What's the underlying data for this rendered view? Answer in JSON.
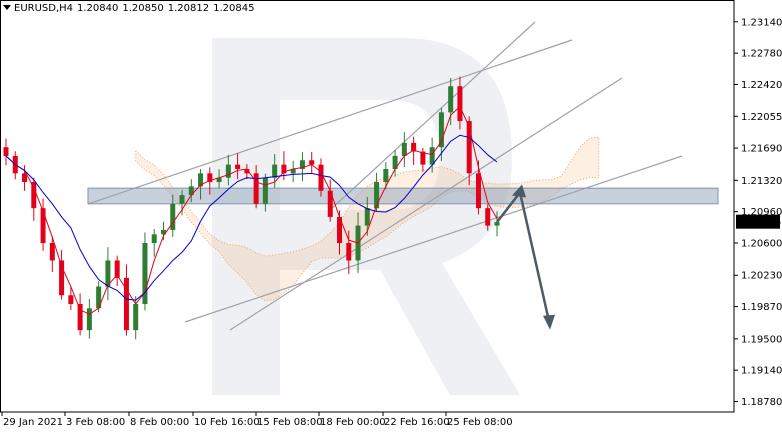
{
  "header": {
    "symbol": "EURUSD,H4",
    "open": "1.20840",
    "high": "1.20850",
    "low": "1.20812",
    "close": "1.20845"
  },
  "colors": {
    "bull_candle": "#2e7d32",
    "bear_candle": "#e3001b",
    "tenkan": "#e3001b",
    "kijun": "#0000cc",
    "cloud": "#f4a460",
    "trendline": "#a0a0a8",
    "zone": "#9aa9bd",
    "arrow": "#4b5b68",
    "current_price_bg": "#000000",
    "watermark": "#eef0f4"
  },
  "chart_data": {
    "type": "candlestick",
    "ylim": [
      1.1866,
      1.2339
    ],
    "price_ticks": [
      "1.23140",
      "1.22780",
      "1.22420",
      "1.22055",
      "1.21690",
      "1.21320",
      "1.20960",
      "1.20600",
      "1.20230",
      "1.19870",
      "1.19500",
      "1.19140",
      "1.18780"
    ],
    "current_price": "1.20845",
    "time_ticks": [
      "29 Jan 2021",
      "3 Feb 08:00",
      "8 Feb 00:00",
      "10 Feb 16:00",
      "15 Feb 08:00",
      "18 Feb 00:00",
      "22 Feb 16:00",
      "25 Feb 08:00"
    ],
    "candles_close_path": [
      1.216,
      1.214,
      1.213,
      1.21,
      1.206,
      1.204,
      1.2,
      1.199,
      1.196,
      1.1985,
      1.201,
      1.204,
      1.202,
      1.196,
      1.199,
      1.206,
      1.207,
      1.2075,
      1.2105,
      1.2115,
      1.2125,
      1.214,
      1.213,
      1.2135,
      1.215,
      1.2145,
      1.214,
      1.2105,
      1.2135,
      1.215,
      1.214,
      1.2145,
      1.2155,
      1.215,
      1.212,
      1.209,
      1.206,
      1.204,
      1.208,
      1.21,
      1.213,
      1.2145,
      1.216,
      1.2175,
      1.2165,
      1.215,
      1.217,
      1.221,
      1.224,
      1.22,
      1.214,
      1.21,
      1.208,
      1.2084
    ],
    "support_resistance_zone": [
      1.2105,
      1.2123
    ],
    "forecast": {
      "from": 1.2084,
      "peak": 1.2118,
      "target": 1.1965
    }
  }
}
